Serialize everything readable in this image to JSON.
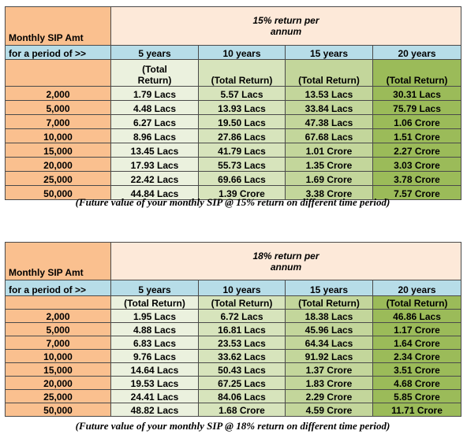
{
  "tables": [
    {
      "rate_title": "15% return per annum",
      "rate_line1": "15% return per",
      "rate_line2": "annum",
      "label_sip": "Monthly SIP Amt",
      "label_period": "for a period of >>",
      "years": [
        "5 years",
        "10 years",
        "15 years",
        "20 years"
      ],
      "total_return_first": [
        "(Total",
        "Return)"
      ],
      "total_return": "(Total Return)",
      "rows": [
        {
          "amt": "2,000",
          "v": [
            "1.79 Lacs",
            "5.57 Lacs",
            "13.53 Lacs",
            "30.31 Lacs"
          ]
        },
        {
          "amt": "5,000",
          "v": [
            "4.48 Lacs",
            "13.93 Lacs",
            "33.84 Lacs",
            "75.79 Lacs"
          ]
        },
        {
          "amt": "7,000",
          "v": [
            "6.27 Lacs",
            "19.50 Lacs",
            "47.38 Lacs",
            "1.06 Crore"
          ]
        },
        {
          "amt": "10,000",
          "v": [
            "8.96 Lacs",
            "27.86 Lacs",
            "67.68 Lacs",
            "1.51 Crore"
          ]
        },
        {
          "amt": "15,000",
          "v": [
            "13.45 Lacs",
            "41.79 Lacs",
            "1.01 Crore",
            "2.27 Crore"
          ]
        },
        {
          "amt": "20,000",
          "v": [
            "17.93 Lacs",
            "55.73 Lacs",
            "1.35 Crore",
            "3.03 Crore"
          ]
        },
        {
          "amt": "25,000",
          "v": [
            "22.42 Lacs",
            "69.66 Lacs",
            "1.69 Crore",
            "3.78 Crore"
          ]
        },
        {
          "amt": "50,000",
          "v": [
            "44.84 Lacs",
            "1.39 Crore",
            "3.38 Crore",
            "7.57 Crore"
          ]
        }
      ],
      "caption": "(Future value of your monthly SIP @ 15% return on different time period)"
    },
    {
      "rate_line1": "18% return per",
      "rate_line2": "annum",
      "label_sip": "Monthly SIP Amt",
      "label_period": "for a period of >>",
      "years": [
        "5 years",
        "10 years",
        "15 years",
        "20 years"
      ],
      "total_return": "(Total Return)",
      "rows": [
        {
          "amt": "2,000",
          "v": [
            "1.95 Lacs",
            "6.72 Lacs",
            "18.38 Lacs",
            "46.86 Lacs"
          ]
        },
        {
          "amt": "5,000",
          "v": [
            "4.88 Lacs",
            "16.81 Lacs",
            "45.96 Lacs",
            "1.17 Crore"
          ]
        },
        {
          "amt": "7,000",
          "v": [
            "6.83 Lacs",
            "23.53 Lacs",
            "64.34 Lacs",
            "1.64 Crore"
          ]
        },
        {
          "amt": "10,000",
          "v": [
            "9.76 Lacs",
            "33.62 Lacs",
            "91.92 Lacs",
            "2.34 Crore"
          ]
        },
        {
          "amt": "15,000",
          "v": [
            "14.64 Lacs",
            "50.43 Lacs",
            "1.37 Crore",
            "3.51 Crore"
          ]
        },
        {
          "amt": "20,000",
          "v": [
            "19.53 Lacs",
            "67.25 Lacs",
            "1.83 Crore",
            "4.68 Crore"
          ]
        },
        {
          "amt": "25,000",
          "v": [
            "24.41 Lacs",
            "84.06 Lacs",
            "2.29 Crore",
            "5.85 Crore"
          ]
        },
        {
          "amt": "50,000",
          "v": [
            "48.82 Lacs",
            "1.68 Crore",
            "4.59 Crore",
            "11.71 Crore"
          ]
        }
      ],
      "caption": "(Future value of your monthly SIP @ 18% return on different time period)"
    }
  ],
  "colors": {
    "orange": "#fac08f",
    "header_bg": "#fde9d9",
    "blue": "#b7dde8",
    "col_5y": "#ebf1de",
    "col_10y": "#d7e4bc",
    "col_15y": "#c3d69b",
    "col_20y": "#9bbb59"
  }
}
